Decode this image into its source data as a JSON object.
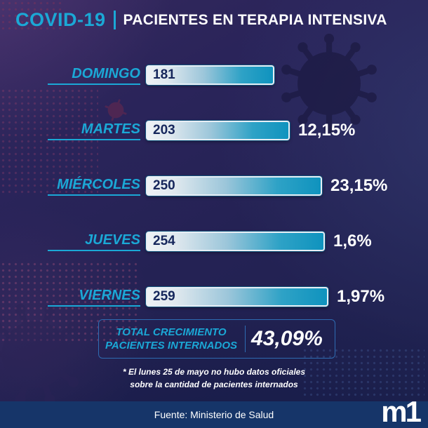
{
  "header": {
    "brand": "COVID-19",
    "title": "PACIENTES EN TERAPIA INTENSIVA"
  },
  "chart_data": {
    "type": "bar",
    "orientation": "horizontal",
    "title": "COVID-19 | PACIENTES EN TERAPIA INTENSIVA",
    "categories": [
      "DOMINGO",
      "MARTES",
      "MIÉRCOLES",
      "JUEVES",
      "VIERNES"
    ],
    "values": [
      181,
      203,
      250,
      254,
      259
    ],
    "growth_labels": [
      "",
      "12,15%",
      "23,15%",
      "1,6%",
      "1,97%"
    ],
    "total_growth_value": "43,09%",
    "xlim": [
      0,
      259
    ],
    "legend": false,
    "grid": false,
    "bar_label_inside": true
  },
  "total": {
    "line1": "TOTAL CRECIMIENTO",
    "line2": "PACIENTES INTERNADOS"
  },
  "footnote": {
    "line1": "* El lunes 25 de mayo no hubo datos oficiales",
    "line2": "sobre la cantidad de pacientes internados"
  },
  "footer": {
    "source": "Fuente: Ministerio de Salud",
    "logo": "m1"
  },
  "colors": {
    "accent_cyan": "#1ba8d6",
    "bar_end": "#0f93be",
    "bar_start": "#eef2f5",
    "navy_text": "#16275c",
    "strip": "#163569",
    "background": "#242254",
    "percent_text": "#ffffff"
  }
}
